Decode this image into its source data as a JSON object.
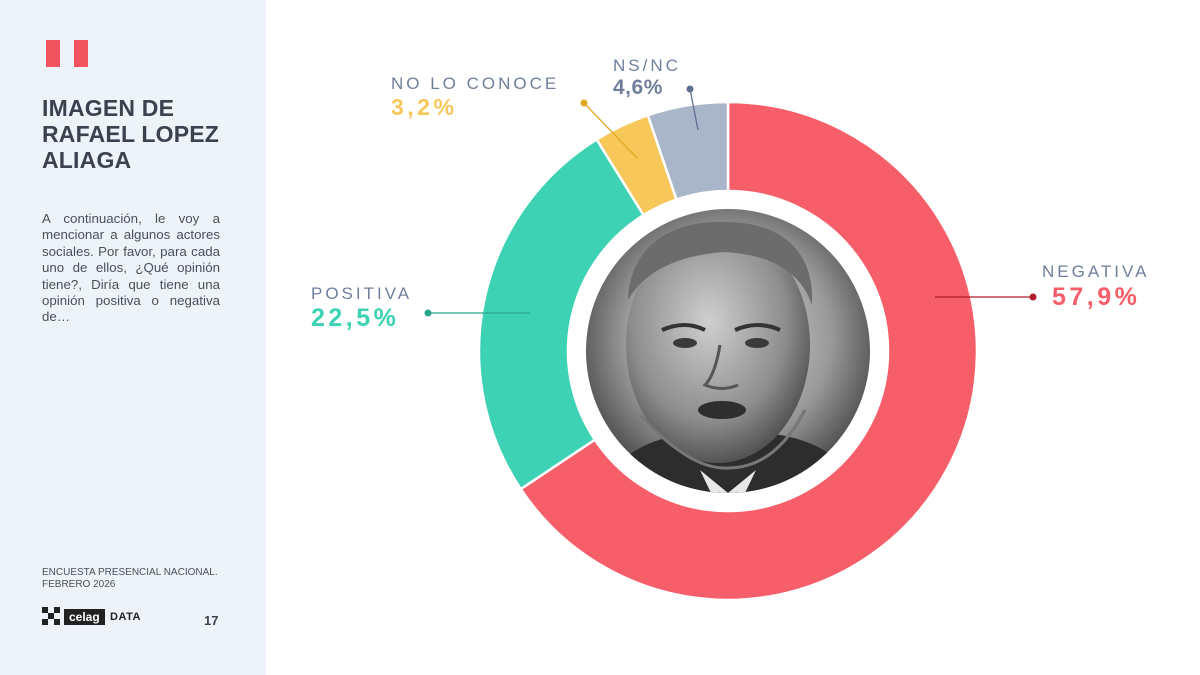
{
  "sidebar": {
    "title_lines": [
      "IMAGEN DE",
      "RAFAEL LOPEZ",
      "ALIAGA"
    ],
    "question": "A continuación, le voy a mencionar a algunos actores sociales. Por favor, para cada uno de ellos, ¿Qué opinión tiene?, Diría que tiene una opinión positiva o negativa de…",
    "source_lines": [
      "ENCUESTA PRESENCIAL NACIONAL.",
      "FEBRERO 2026"
    ],
    "logo_text": "celag",
    "logo_suffix": "DATA",
    "page_number": "17"
  },
  "colors": {
    "negativa": "#f65f69",
    "positiva": "#3dd2b3",
    "no_lo_conoce": "#f8c75a",
    "nsnc": "#a9b5c9",
    "label_gray": "#6f7f9b",
    "flag_red": "#f0555f"
  },
  "photo": {
    "description_icon": "portrait-photo"
  },
  "chart_data": {
    "type": "pie",
    "variant": "donut",
    "start": "12 o'clock, clockwise",
    "slices": [
      {
        "key": "negativa",
        "label": "NEGATIVA",
        "value": 57.9,
        "display": "57,9%"
      },
      {
        "key": "positiva",
        "label": "POSITIVA",
        "value": 22.5,
        "display": "22,5%"
      },
      {
        "key": "no_lo_conoce",
        "label": "NO LO CONOCE",
        "value": 3.2,
        "display": "3,2%"
      },
      {
        "key": "nsnc",
        "label": "NS/NC",
        "value": 4.6,
        "display": "4,6%"
      }
    ]
  }
}
